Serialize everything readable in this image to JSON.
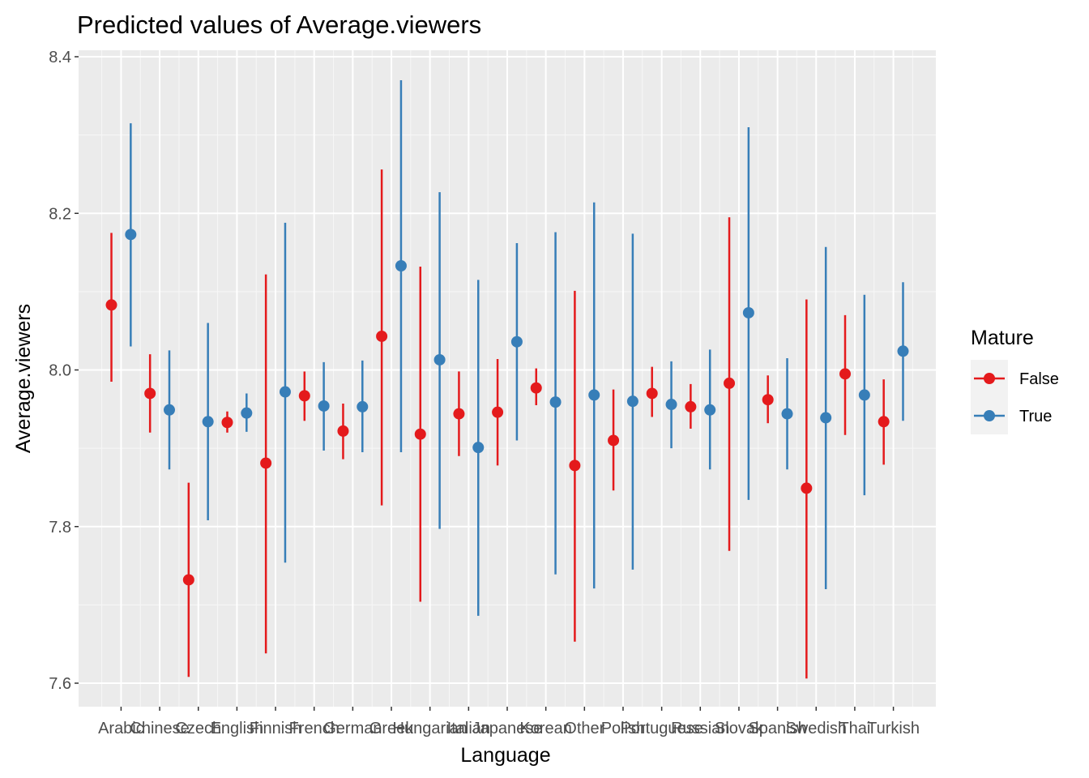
{
  "chart_data": {
    "type": "scatter",
    "title": "Predicted values of Average.viewers",
    "xlabel": "Language",
    "ylabel": "Average.viewers",
    "ylim": [
      7.59,
      8.41
    ],
    "yticks": [
      7.6,
      7.8,
      8.0,
      8.2,
      8.4
    ],
    "ytick_labels": [
      "7.6",
      "7.8",
      "8.0",
      "8.2",
      "8.4"
    ],
    "grid": true,
    "legend": {
      "title": "Mature",
      "placement": "right"
    },
    "categories": [
      "Arabic",
      "Chinese",
      "Czech",
      "English",
      "Finnish",
      "French",
      "German",
      "Greek",
      "Hungarian",
      "Italian",
      "Japanese",
      "Korean",
      "Other",
      "Polish",
      "Portuguese",
      "Russian",
      "Slovak",
      "Spanish",
      "Swedish",
      "Thai",
      "Turkish"
    ],
    "series": [
      {
        "name": "False",
        "color": "#e41a1c",
        "values": [
          8.083,
          7.97,
          7.732,
          7.933,
          7.881,
          7.967,
          7.922,
          8.043,
          7.918,
          7.944,
          7.946,
          7.977,
          7.878,
          7.91,
          7.97,
          7.953,
          7.983,
          7.962,
          7.849,
          7.995,
          7.934
        ],
        "lower": [
          7.985,
          7.92,
          7.608,
          7.92,
          7.638,
          7.935,
          7.886,
          7.827,
          7.704,
          7.89,
          7.878,
          7.955,
          7.653,
          7.846,
          7.94,
          7.925,
          7.769,
          7.932,
          7.606,
          7.917,
          7.879
        ],
        "upper": [
          8.175,
          8.02,
          7.856,
          7.947,
          8.122,
          7.998,
          7.957,
          8.256,
          8.132,
          7.998,
          8.014,
          8.002,
          8.101,
          7.975,
          8.004,
          7.982,
          8.195,
          7.993,
          8.09,
          8.07,
          7.988
        ]
      },
      {
        "name": "True",
        "color": "#377eb8",
        "values": [
          8.173,
          7.949,
          7.934,
          7.945,
          7.972,
          7.954,
          7.953,
          8.133,
          8.013,
          7.901,
          8.036,
          7.959,
          7.968,
          7.96,
          7.956,
          7.949,
          8.073,
          7.944,
          7.939,
          7.968,
          8.024
        ],
        "lower": [
          8.03,
          7.873,
          7.808,
          7.921,
          7.754,
          7.897,
          7.895,
          7.895,
          7.797,
          7.686,
          7.91,
          7.739,
          7.721,
          7.745,
          7.9,
          7.873,
          7.834,
          7.873,
          7.72,
          7.84,
          7.935
        ],
        "upper": [
          8.315,
          8.025,
          8.06,
          7.97,
          8.188,
          8.01,
          8.012,
          8.37,
          8.227,
          8.115,
          8.162,
          8.176,
          8.214,
          8.174,
          8.011,
          8.026,
          8.31,
          8.015,
          8.157,
          8.096,
          8.112
        ]
      }
    ]
  }
}
